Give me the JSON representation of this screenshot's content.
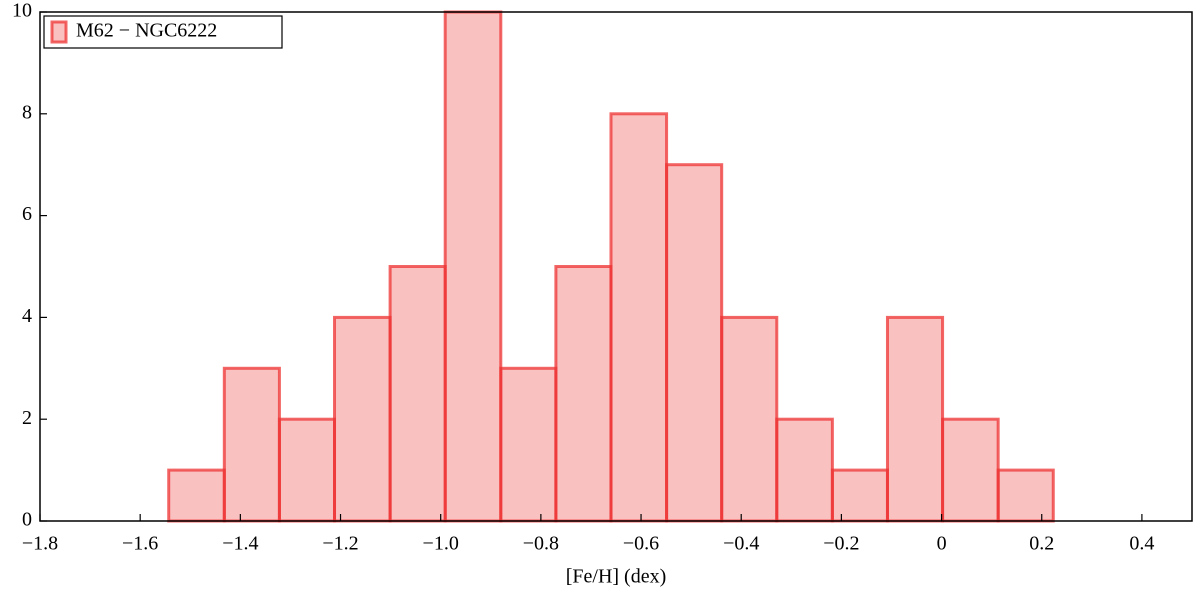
{
  "chart_data": {
    "type": "histogram",
    "xlabel": "[Fe/H] (dex)",
    "bins": [
      -1.543,
      -1.432,
      -1.322,
      -1.212,
      -1.101,
      -0.991,
      -0.88,
      -0.77,
      -0.66,
      -0.549,
      -0.439,
      -0.329,
      -0.218,
      -0.108,
      0.002,
      0.113,
      0.223
    ],
    "series": [
      {
        "name": "M62 − NGC6222",
        "color": "#ee3333",
        "values": [
          1,
          3,
          2,
          4,
          5,
          10,
          3,
          5,
          8,
          7,
          4,
          2,
          1,
          4,
          2,
          1
        ]
      }
    ],
    "xlim": [
      -1.8,
      0.5
    ],
    "xticks": [
      {
        "value": -1.8,
        "label": "−1.8"
      },
      {
        "value": -1.6,
        "label": "−1.6"
      },
      {
        "value": -1.4,
        "label": "−1.4"
      },
      {
        "value": -1.2,
        "label": "−1.2"
      },
      {
        "value": -1.0,
        "label": "−1.0"
      },
      {
        "value": -0.8,
        "label": "−0.8"
      },
      {
        "value": -0.6,
        "label": "−0.6"
      },
      {
        "value": -0.4,
        "label": "−0.4"
      },
      {
        "value": -0.2,
        "label": "−0.2"
      },
      0,
      {
        "value": 0.2,
        "label": "0.2"
      },
      {
        "value": 0.4,
        "label": "0.4"
      }
    ],
    "ylim": [
      0,
      10
    ],
    "yticks": [
      0,
      2,
      4,
      6,
      8,
      10
    ],
    "legend": "upper left",
    "grid": false
  }
}
